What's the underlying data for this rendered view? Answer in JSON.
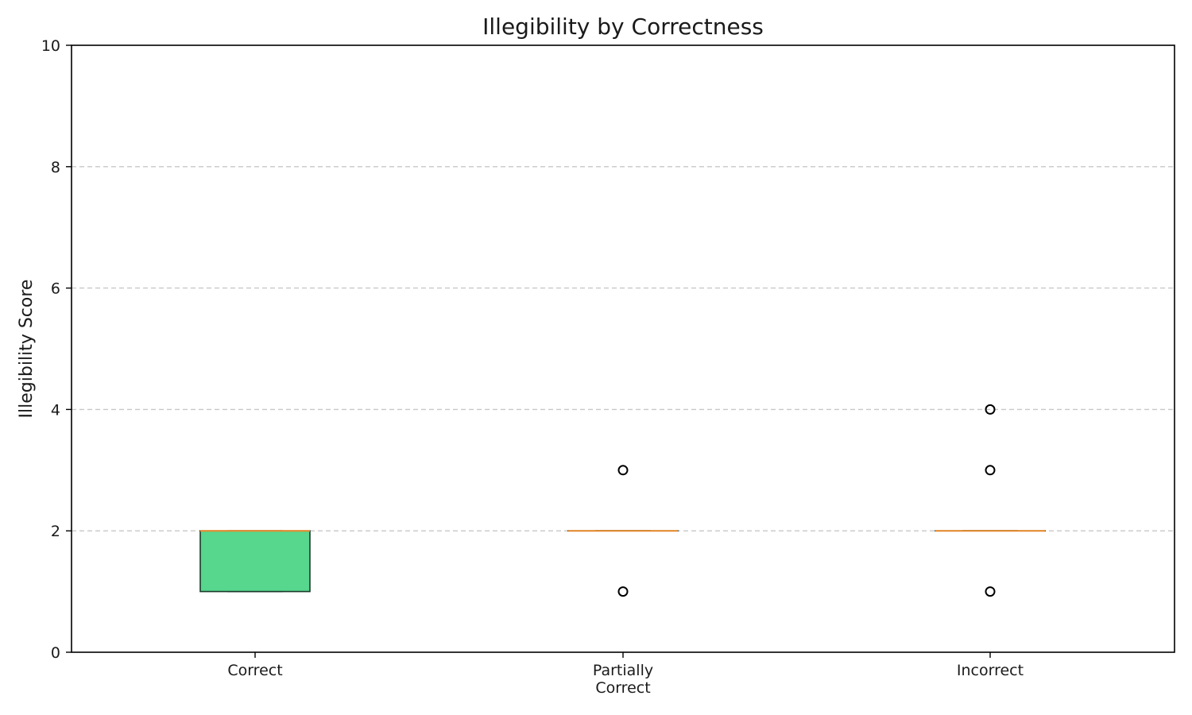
{
  "chart_data": {
    "type": "box",
    "title": "Illegibility by Correctness",
    "xlabel": "",
    "ylabel": "Illegibility Score",
    "ylim": [
      0,
      10
    ],
    "yticks": [
      "0",
      "2",
      "4",
      "6",
      "8",
      "10"
    ],
    "grid": "y-dashed",
    "categories": [
      {
        "label_lines": [
          "Correct"
        ]
      },
      {
        "label_lines": [
          "Partially",
          "Correct"
        ]
      },
      {
        "label_lines": [
          "Incorrect"
        ]
      }
    ],
    "boxes": [
      {
        "q1": 1,
        "median": 2,
        "q3": 2,
        "whisker_low": 1,
        "whisker_high": 2,
        "outliers": [],
        "fill": "#57d68d"
      },
      {
        "q1": 2,
        "median": 2,
        "q3": 2,
        "whisker_low": 2,
        "whisker_high": 2,
        "outliers": [
          3,
          1
        ],
        "fill": "#ffffff"
      },
      {
        "q1": 2,
        "median": 2,
        "q3": 2,
        "whisker_low": 2,
        "whisker_high": 2,
        "outliers": [
          4,
          3,
          1
        ],
        "fill": "#ffffff"
      }
    ],
    "colors": {
      "median": "#e8892b",
      "box_edge": "#1a3a2a",
      "grid": "#c8c8c8",
      "axis": "#000000"
    }
  }
}
